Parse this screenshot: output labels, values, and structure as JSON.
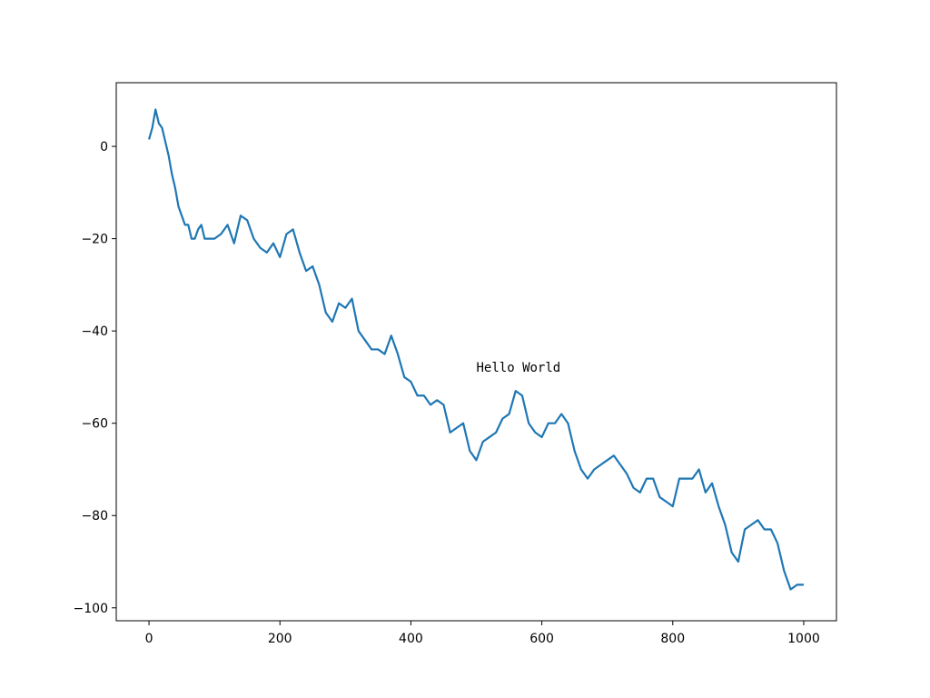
{
  "chart_data": {
    "type": "line",
    "x": [
      0,
      5,
      10,
      15,
      20,
      25,
      30,
      35,
      40,
      45,
      50,
      55,
      60,
      65,
      70,
      75,
      80,
      85,
      90,
      100,
      110,
      120,
      130,
      140,
      150,
      160,
      170,
      180,
      190,
      200,
      210,
      220,
      230,
      240,
      250,
      260,
      270,
      280,
      290,
      300,
      310,
      320,
      330,
      340,
      350,
      360,
      370,
      380,
      390,
      400,
      410,
      420,
      430,
      440,
      450,
      460,
      470,
      480,
      490,
      500,
      510,
      520,
      530,
      540,
      550,
      560,
      570,
      580,
      590,
      600,
      610,
      620,
      630,
      640,
      650,
      660,
      670,
      680,
      690,
      700,
      710,
      720,
      730,
      740,
      750,
      760,
      770,
      780,
      790,
      800,
      810,
      820,
      830,
      840,
      850,
      860,
      870,
      880,
      890,
      900,
      910,
      920,
      930,
      940,
      950,
      960,
      970,
      980,
      990,
      1000
    ],
    "series": [
      {
        "color": "#1f77b4",
        "values": [
          1.5,
          4,
          8,
          5,
          4,
          1,
          -2,
          -6,
          -9,
          -13,
          -15,
          -17,
          -17,
          -20,
          -20,
          -18,
          -17,
          -20,
          -20,
          -20,
          -19,
          -17,
          -21,
          -15,
          -16,
          -20,
          -22,
          -23,
          -21,
          -24,
          -19,
          -18,
          -23,
          -27,
          -26,
          -30,
          -36,
          -38,
          -34,
          -35,
          -33,
          -40,
          -42,
          -44,
          -44,
          -45,
          -41,
          -45,
          -50,
          -51,
          -54,
          -54,
          -56,
          -55,
          -56,
          -62,
          -61,
          -60,
          -66,
          -68,
          -64,
          -63,
          -62,
          -59,
          -58,
          -53,
          -54,
          -60,
          -62,
          -63,
          -60,
          -60,
          -58,
          -60,
          -66,
          -70,
          -72,
          -70,
          -69,
          -68,
          -67,
          -69,
          -71,
          -74,
          -75,
          -72,
          -72,
          -76,
          -77,
          -78,
          -72,
          -72,
          -72,
          -70,
          -75,
          -73,
          -78,
          -82,
          -88,
          -90,
          -83,
          -82,
          -81,
          -83,
          -83,
          -86,
          -92,
          -96,
          -95,
          -95
        ]
      }
    ],
    "xlim": [
      -50,
      1050
    ],
    "ylim": [
      -102.8,
      13.8
    ],
    "xticks": [
      0,
      200,
      400,
      600,
      800,
      1000
    ],
    "yticks": [
      {
        "value": -100,
        "label": "−100"
      },
      {
        "value": -80,
        "label": "−80"
      },
      {
        "value": -60,
        "label": "−60"
      },
      {
        "value": -40,
        "label": "−40"
      },
      {
        "value": -20,
        "label": "−20"
      },
      0
    ],
    "annotations": [
      {
        "text": "Hello World",
        "x": 500,
        "y": -50
      }
    ]
  }
}
